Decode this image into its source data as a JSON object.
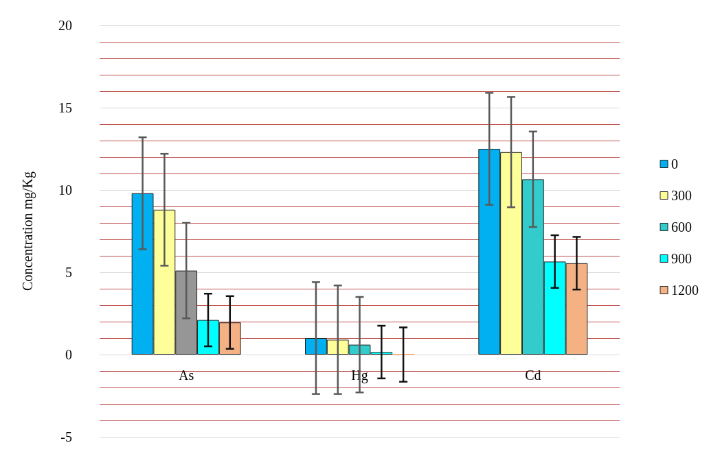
{
  "chart_data": {
    "type": "bar",
    "ylabel": "Concentration mg/Kg",
    "categories": [
      "As",
      "Hg",
      "Cd"
    ],
    "series": [
      {
        "name": "0",
        "color": "#00b0f0",
        "values": [
          9.8,
          1.0,
          12.5
        ],
        "errors": [
          3.4,
          3.4,
          3.4
        ]
      },
      {
        "name": "300",
        "color": "#ffff99",
        "values": [
          8.8,
          0.9,
          12.3
        ],
        "errors": [
          3.4,
          3.3,
          3.35
        ]
      },
      {
        "name": "600",
        "color": "#33cccc",
        "colors": [
          "#969696",
          "#33cccc",
          "#33cccc"
        ],
        "values": [
          5.1,
          0.6,
          10.65
        ],
        "errors": [
          2.9,
          2.9,
          2.9
        ]
      },
      {
        "name": "900",
        "color": "#00ffff",
        "values": [
          2.1,
          0.15,
          5.65
        ],
        "errors": [
          1.6,
          1.6,
          1.6
        ]
      },
      {
        "name": "1200",
        "color": "#f4b183",
        "values": [
          1.95,
          0,
          5.55
        ],
        "errors": [
          1.6,
          1.65,
          1.6
        ]
      }
    ],
    "ylim": [
      -5,
      20
    ],
    "yticks": [
      -5,
      {
        "value": -4,
        "label": null
      },
      {
        "value": -3,
        "label": null
      },
      {
        "value": -2,
        "label": null
      },
      {
        "value": -1,
        "label": null
      },
      0,
      {
        "value": 1,
        "label": null
      },
      {
        "value": 2,
        "label": null
      },
      {
        "value": 3,
        "label": null
      },
      {
        "value": 4,
        "label": null
      },
      5,
      {
        "value": 6,
        "label": null
      },
      {
        "value": 7,
        "label": null
      },
      {
        "value": 8,
        "label": null
      },
      {
        "value": 9,
        "label": null
      },
      10,
      {
        "value": 11,
        "label": null
      },
      {
        "value": 12,
        "label": null
      },
      {
        "value": 13,
        "label": null
      },
      {
        "value": 14,
        "label": null
      },
      15,
      {
        "value": 16,
        "label": null
      },
      {
        "value": 17,
        "label": null
      },
      {
        "value": 18,
        "label": null
      },
      {
        "value": 19,
        "label": null
      },
      20
    ],
    "grid": "y",
    "legend": "right"
  }
}
